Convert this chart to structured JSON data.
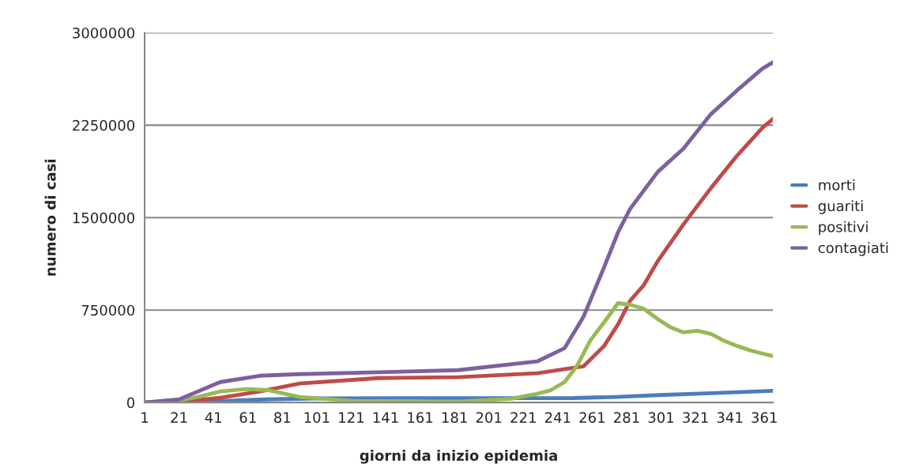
{
  "chart_data": {
    "type": "line",
    "xlabel": "giorni da inizio epidemia",
    "ylabel": "numero di casi",
    "xlim": [
      1,
      366
    ],
    "xticks": [
      1,
      21,
      41,
      61,
      81,
      101,
      121,
      141,
      161,
      181,
      201,
      221,
      241,
      261,
      281,
      301,
      321,
      341,
      361
    ],
    "ylim": [
      0,
      3000000
    ],
    "yticks": [
      0,
      750000,
      1500000,
      2250000,
      3000000
    ],
    "grid": "y",
    "legend": "right",
    "marker": "none",
    "line_style": "solid",
    "series": [
      {
        "name": "morti",
        "color": "#4a7ebb",
        "x": [
          1,
          21,
          41,
          71,
          101,
          150,
          200,
          250,
          275,
          300,
          330,
          366
        ],
        "values": [
          0,
          3000,
          10000,
          25000,
          33000,
          35000,
          35000,
          36000,
          45000,
          60000,
          75000,
          95000
        ]
      },
      {
        "name": "guariti",
        "color": "#be4b48",
        "x": [
          1,
          21,
          45,
          68,
          91,
          137,
          183,
          229,
          256,
          268,
          276,
          283,
          291,
          299,
          314,
          330,
          345,
          360,
          366
        ],
        "values": [
          0,
          5000,
          38000,
          90000,
          154000,
          198000,
          205000,
          237000,
          294000,
          460000,
          633000,
          825000,
          953000,
          1145000,
          1445000,
          1740000,
          2000000,
          2230000,
          2300000
        ]
      },
      {
        "name": "positivi",
        "color": "#98b954",
        "x": [
          1,
          15,
          30,
          45,
          60,
          73,
          91,
          122,
          183,
          214,
          229,
          237,
          245,
          252,
          260,
          268,
          276,
          283,
          291,
          299,
          306,
          314,
          322,
          330,
          337,
          345,
          353,
          360,
          366
        ],
        "values": [
          0,
          5000,
          38000,
          90000,
          109000,
          100000,
          45000,
          13000,
          8000,
          30000,
          70000,
          100000,
          166000,
          294000,
          505000,
          652000,
          806000,
          793000,
          761000,
          678000,
          614000,
          569000,
          582000,
          556000,
          505000,
          460000,
          422000,
          397000,
          377000
        ]
      },
      {
        "name": "contagiati",
        "color": "#7d60a0",
        "x": [
          1,
          21,
          45,
          68,
          91,
          137,
          183,
          229,
          245,
          256,
          268,
          276,
          283,
          299,
          314,
          330,
          345,
          360,
          366
        ],
        "values": [
          0,
          25000,
          166000,
          217000,
          230000,
          245000,
          262000,
          333000,
          441000,
          697000,
          1100000,
          1380000,
          1570000,
          1870000,
          2060000,
          2340000,
          2530000,
          2710000,
          2760000
        ]
      }
    ]
  }
}
